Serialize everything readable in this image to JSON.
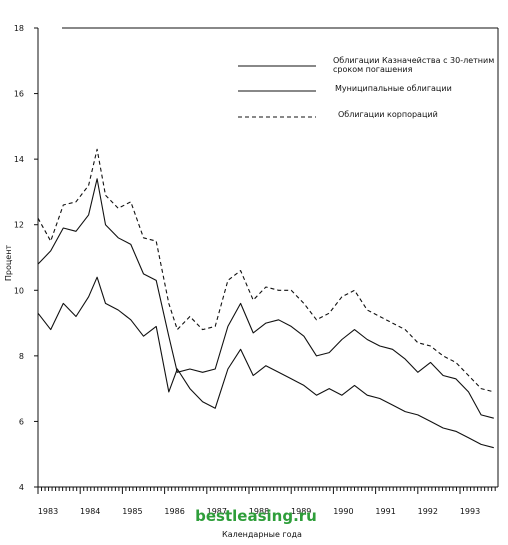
{
  "chart_data": {
    "type": "line",
    "xlabel": "Календарные года",
    "ylabel": "Процент",
    "ylim": [
      4,
      18
    ],
    "xlim": [
      1983,
      1993.9
    ],
    "yticks": [
      4,
      6,
      8,
      10,
      12,
      14,
      16,
      18
    ],
    "ytick_labels": [
      "4",
      "6",
      "8",
      "10",
      "12",
      "14",
      "16",
      "18"
    ],
    "xticks": [
      1983,
      1984,
      1985,
      1986,
      1987,
      1988,
      1989,
      1990,
      1991,
      1992,
      1993
    ],
    "xtick_labels": [
      "1983",
      "1984",
      "1985",
      "1986",
      "1987",
      "1988",
      "1989",
      "1990",
      "1991",
      "1992",
      "1993"
    ],
    "grid": false,
    "legend_position": "top-right",
    "series": [
      {
        "name": "Облигации Казначейства с 30-летним сроком погашения",
        "name_lines": [
          "Облигации Казначейства с 30-летним",
          "сроком погашения"
        ],
        "style": "solid",
        "x": [
          1983.0,
          1983.3,
          1983.6,
          1983.9,
          1984.2,
          1984.4,
          1984.6,
          1984.9,
          1985.2,
          1985.5,
          1985.8,
          1986.1,
          1986.3,
          1986.6,
          1986.9,
          1987.2,
          1987.5,
          1987.8,
          1988.1,
          1988.4,
          1988.7,
          1989.0,
          1989.3,
          1989.6,
          1989.9,
          1990.2,
          1990.5,
          1990.8,
          1991.1,
          1991.4,
          1991.7,
          1992.0,
          1992.3,
          1992.6,
          1992.9,
          1993.2,
          1993.5,
          1993.8
        ],
        "values": [
          10.8,
          11.2,
          11.9,
          11.8,
          12.3,
          13.4,
          12.0,
          11.6,
          11.4,
          10.5,
          10.3,
          8.6,
          7.5,
          7.6,
          7.5,
          7.6,
          8.9,
          9.6,
          8.7,
          9.0,
          9.1,
          8.9,
          8.6,
          8.0,
          8.1,
          8.5,
          8.8,
          8.5,
          8.3,
          8.2,
          7.9,
          7.5,
          7.8,
          7.4,
          7.3,
          6.9,
          6.2,
          6.1
        ]
      },
      {
        "name": "Муниципальные облигации",
        "name_lines": [
          "Муниципальные облигации"
        ],
        "style": "solid",
        "x": [
          1983.0,
          1983.3,
          1983.6,
          1983.9,
          1984.2,
          1984.4,
          1984.6,
          1984.9,
          1985.2,
          1985.5,
          1985.8,
          1986.1,
          1986.3,
          1986.6,
          1986.9,
          1987.2,
          1987.5,
          1987.8,
          1988.1,
          1988.4,
          1988.7,
          1989.0,
          1989.3,
          1989.6,
          1989.9,
          1990.2,
          1990.5,
          1990.8,
          1991.1,
          1991.4,
          1991.7,
          1992.0,
          1992.3,
          1992.6,
          1992.9,
          1993.2,
          1993.5,
          1993.8
        ],
        "values": [
          9.3,
          8.8,
          9.6,
          9.2,
          9.8,
          10.4,
          9.6,
          9.4,
          9.1,
          8.6,
          8.9,
          6.9,
          7.6,
          7.0,
          6.6,
          6.4,
          7.6,
          8.2,
          7.4,
          7.7,
          7.5,
          7.3,
          7.1,
          6.8,
          7.0,
          6.8,
          7.1,
          6.8,
          6.7,
          6.5,
          6.3,
          6.2,
          6.0,
          5.8,
          5.7,
          5.5,
          5.3,
          5.2
        ]
      },
      {
        "name": "Облигации корпораций",
        "name_lines": [
          "Облигации корпораций"
        ],
        "style": "dashed",
        "x": [
          1983.0,
          1983.3,
          1983.6,
          1983.9,
          1984.2,
          1984.4,
          1984.6,
          1984.9,
          1985.2,
          1985.5,
          1985.8,
          1986.1,
          1986.3,
          1986.6,
          1986.9,
          1987.2,
          1987.5,
          1987.8,
          1988.1,
          1988.4,
          1988.7,
          1989.0,
          1989.3,
          1989.6,
          1989.9,
          1990.2,
          1990.5,
          1990.8,
          1991.1,
          1991.4,
          1991.7,
          1992.0,
          1992.3,
          1992.6,
          1992.9,
          1993.2,
          1993.5,
          1993.8
        ],
        "values": [
          12.2,
          11.5,
          12.6,
          12.7,
          13.2,
          14.3,
          12.9,
          12.5,
          12.7,
          11.6,
          11.5,
          9.6,
          8.8,
          9.2,
          8.8,
          8.9,
          10.3,
          10.6,
          9.7,
          10.1,
          10.0,
          10.0,
          9.6,
          9.1,
          9.3,
          9.8,
          10.0,
          9.4,
          9.2,
          9.0,
          8.8,
          8.4,
          8.3,
          8.0,
          7.8,
          7.4,
          7.0,
          6.9
        ]
      }
    ]
  },
  "watermark": "bestleasing.ru"
}
